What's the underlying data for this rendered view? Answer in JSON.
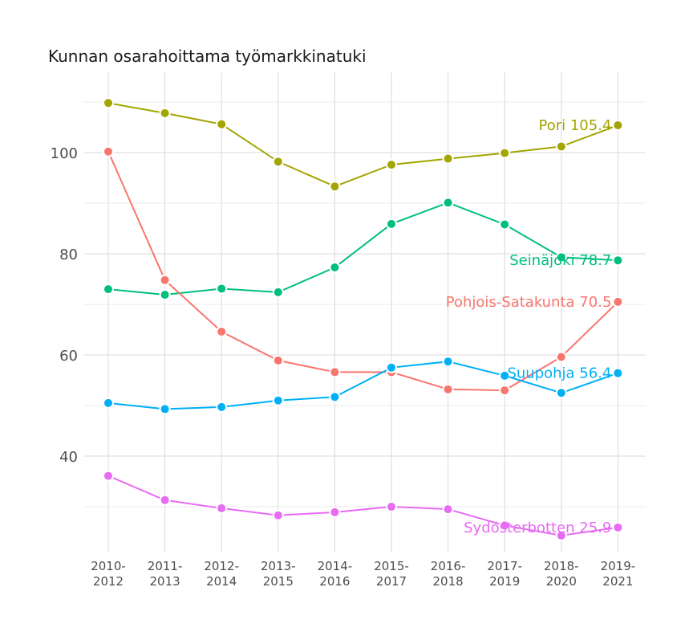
{
  "chart_data": {
    "type": "line",
    "title": "Kunnan osarahoittama työmarkkinatuki",
    "xlabel": "",
    "ylabel": "",
    "categories": [
      [
        "2010-",
        "2012"
      ],
      [
        "2011-",
        "2013"
      ],
      [
        "2012-",
        "2014"
      ],
      [
        "2013-",
        "2015"
      ],
      [
        "2014-",
        "2016"
      ],
      [
        "2015-",
        "2017"
      ],
      [
        "2016-",
        "2018"
      ],
      [
        "2017-",
        "2019"
      ],
      [
        "2018-",
        "2020"
      ],
      [
        "2019-",
        "2021"
      ]
    ],
    "ylim": [
      22.5,
      112
    ],
    "yticks": [
      40,
      60,
      80,
      100
    ],
    "grid": true,
    "legend": "end-labels",
    "series": [
      {
        "name": "Pori",
        "end_label": "Pori 105.4",
        "color": "#a3a500",
        "values": [
          109.8,
          107.8,
          105.6,
          98.2,
          93.3,
          97.6,
          98.8,
          99.9,
          101.2,
          105.4
        ]
      },
      {
        "name": "Seinäjoki",
        "end_label": "Seinäjoki 78.7",
        "color": "#00bf7d",
        "values": [
          73.0,
          71.9,
          73.1,
          72.4,
          77.3,
          85.9,
          90.1,
          85.8,
          79.3,
          78.7
        ]
      },
      {
        "name": "Pohjois-Satakunta",
        "end_label": "Pohjois-Satakunta 70.5",
        "color": "#f8766d",
        "values": [
          100.2,
          74.8,
          64.6,
          58.9,
          56.6,
          56.6,
          53.2,
          53.0,
          59.6,
          70.5
        ]
      },
      {
        "name": "Suupohja",
        "end_label": "Suupohja 56.4",
        "color": "#00b0f6",
        "values": [
          50.5,
          49.3,
          49.7,
          51.0,
          51.7,
          57.5,
          58.7,
          55.9,
          52.5,
          56.4
        ]
      },
      {
        "name": "Sydösterbotten",
        "end_label": "Sydösterbotten 25.9",
        "color": "#e76bf3",
        "values": [
          36.1,
          31.3,
          29.7,
          28.3,
          28.9,
          30.0,
          29.5,
          26.3,
          24.3,
          25.9
        ]
      }
    ]
  }
}
